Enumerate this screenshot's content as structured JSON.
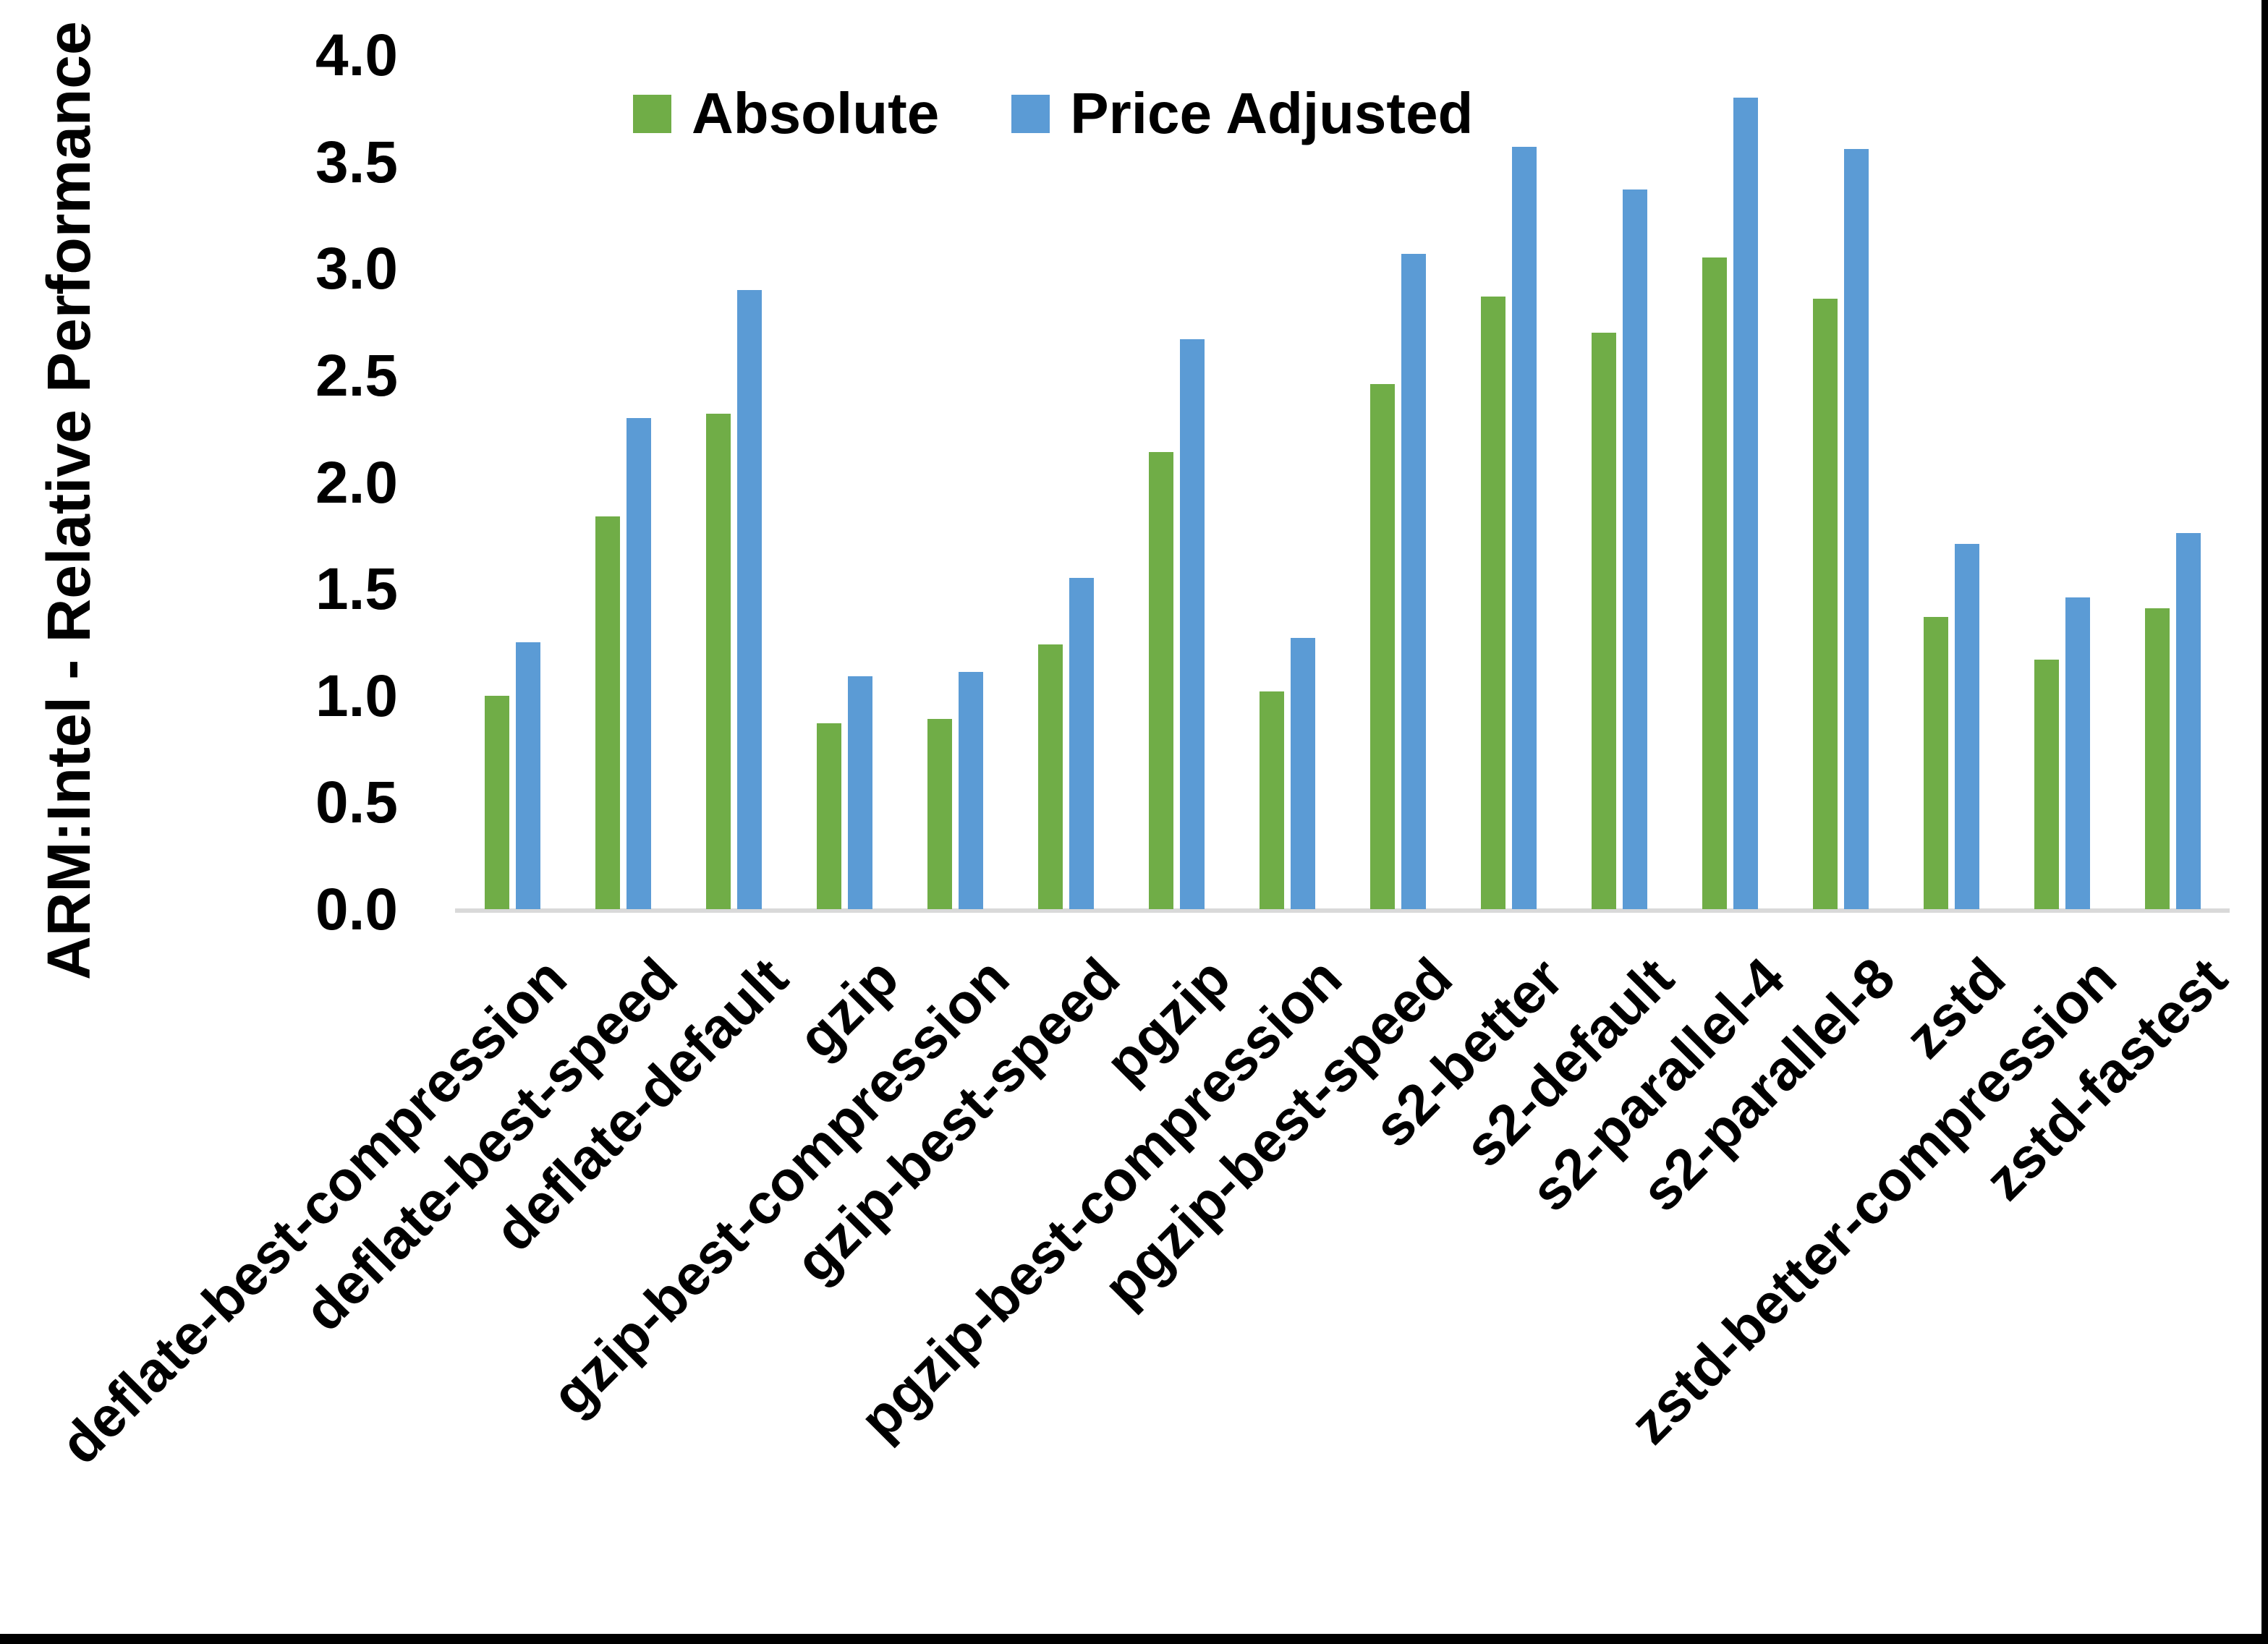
{
  "figure": {
    "background": "#ffffff",
    "frame_color": "#000000",
    "axis_line_color": "#d9d9d9",
    "text_color": "#000000"
  },
  "legend": {
    "position": "top",
    "items": [
      {
        "label": "Absolute",
        "color": "#70ad47"
      },
      {
        "label": "Price Adjusted",
        "color": "#5b9bd5"
      }
    ]
  },
  "y_axis": {
    "title": "ARM:Intel - Relative Performance",
    "tick_labels": [
      "4.0",
      "3.5",
      "3.0",
      "2.5",
      "2.0",
      "1.5",
      "1.0",
      "0.5",
      "0.0"
    ]
  },
  "chart_data": {
    "type": "bar",
    "title": "",
    "xlabel": "",
    "ylabel": "ARM:Intel - Relative Performance",
    "ylim": [
      0.0,
      4.0
    ],
    "yticks": [
      0.0,
      0.5,
      1.0,
      1.5,
      2.0,
      2.5,
      3.0,
      3.5,
      4.0
    ],
    "grid": false,
    "legend_position": "top",
    "categories": [
      "deflate-best-compression",
      "deflate-best-speed",
      "deflate-default",
      "gzip",
      "gzip-best-compression",
      "gzip-best-speed",
      "pgzip",
      "pgzip-best-compression",
      "pgzip-best-speed",
      "s2-better",
      "s2-default",
      "s2-parallel-4",
      "s2-parallel-8",
      "zstd",
      "zstd-better-compression",
      "zstd-fastest"
    ],
    "series": [
      {
        "name": "Absolute",
        "color": "#70ad47",
        "values": [
          1.0,
          1.84,
          2.32,
          0.87,
          0.89,
          1.24,
          2.14,
          1.02,
          2.46,
          2.87,
          2.7,
          3.05,
          2.86,
          1.37,
          1.17,
          1.41
        ]
      },
      {
        "name": "Price Adjusted",
        "color": "#5b9bd5",
        "values": [
          1.25,
          2.3,
          2.9,
          1.09,
          1.11,
          1.55,
          2.67,
          1.27,
          3.07,
          3.57,
          3.37,
          3.8,
          3.56,
          1.71,
          1.46,
          1.76
        ]
      }
    ]
  }
}
